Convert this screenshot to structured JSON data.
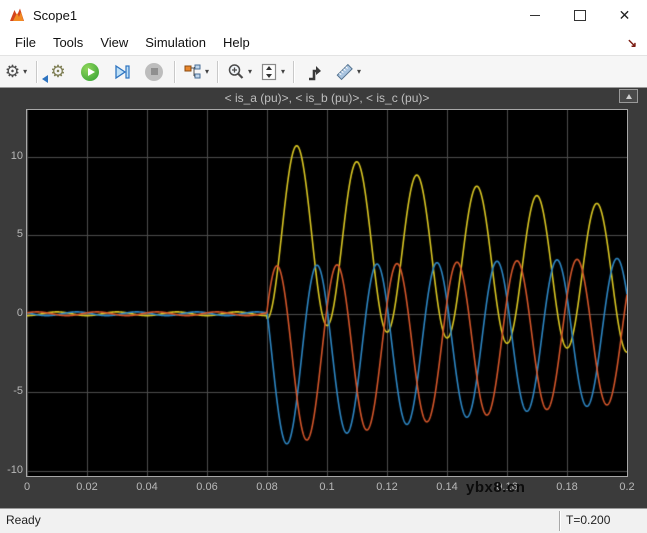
{
  "window": {
    "title": "Scope1",
    "controls": {
      "minimize": "",
      "maximize": "",
      "close": "✕"
    }
  },
  "menu": {
    "items": [
      {
        "label": "File"
      },
      {
        "label": "Tools"
      },
      {
        "label": "View"
      },
      {
        "label": "Simulation"
      },
      {
        "label": "Help"
      }
    ],
    "overflow_arrow": "↘"
  },
  "toolbar": {
    "icons": [
      "gear-icon",
      "highlight-block-icon",
      "run-icon",
      "step-forward-icon",
      "stop-icon",
      "signal-selector-icon",
      "zoom-in-icon",
      "span-y-icon",
      "trigger-icon",
      "measurements-icon"
    ]
  },
  "figure": {
    "title": "< is_a (pu)>, < is_b (pu)>, < is_c (pu)>"
  },
  "watermark": "ybx8.cn",
  "status": {
    "left": "Ready",
    "right": "T=0.200"
  },
  "chart_data": {
    "type": "line",
    "title": "< is_a (pu)>, < is_b (pu)>, < is_c (pu)>",
    "xlabel": "",
    "ylabel": "",
    "x_min": 0,
    "x_max": 0.2,
    "ylim": [
      -10.35,
      13
    ],
    "grid": true,
    "x_ticks": [
      0,
      0.02,
      0.04,
      0.06,
      0.08,
      0.1,
      0.12,
      0.14,
      0.16,
      0.18,
      0.2
    ],
    "x_tick_labels": [
      "0",
      "0.02",
      "0.04",
      "0.06",
      "0.08",
      "0.1",
      "0.12",
      "0.14",
      "0.16",
      "0.18",
      "0.2"
    ],
    "y_ticks": [
      10,
      5,
      0,
      -5,
      -10
    ],
    "y_tick_labels": [
      "10",
      "5",
      "0",
      "-5",
      "-10"
    ],
    "background": "#000000",
    "grid_color": "#4d4d4d",
    "frequency_hz": 50,
    "fault_time_s": 0.08,
    "prefault_amplitude": 0.12,
    "model": {
      "dc_tau": 0.13,
      "ac_base": 4.3,
      "ac_extra": 1.5,
      "ac_tau": 0.08
    },
    "series": [
      {
        "name": "is_a (pu)",
        "color": "#d9c623",
        "phase_deg": -180,
        "dc": 5.5,
        "peak_values": [
          10.7,
          9.7,
          8.8,
          8.1,
          7.5,
          7.0
        ],
        "peak_times": [
          0.09,
          0.11,
          0.13,
          0.15,
          0.17,
          0.19
        ]
      },
      {
        "name": "is_b (pu)",
        "color": "#2d86c3",
        "phase_deg": 60,
        "dc": -2.75,
        "trough_values": [
          -8.3,
          -7.6,
          -7.1,
          -6.7,
          -6.4,
          -6.1
        ],
        "trough_times": [
          0.087,
          0.107,
          0.127,
          0.147,
          0.167,
          0.187
        ]
      },
      {
        "name": "is_c (pu)",
        "color": "#d4562a",
        "phase_deg": -60,
        "dc": -2.75,
        "trough_values": [
          -8.3,
          -7.8,
          -7.2,
          -6.8,
          -6.5,
          -6.2
        ],
        "trough_times": [
          0.093,
          0.113,
          0.133,
          0.153,
          0.173,
          0.193
        ]
      }
    ]
  }
}
